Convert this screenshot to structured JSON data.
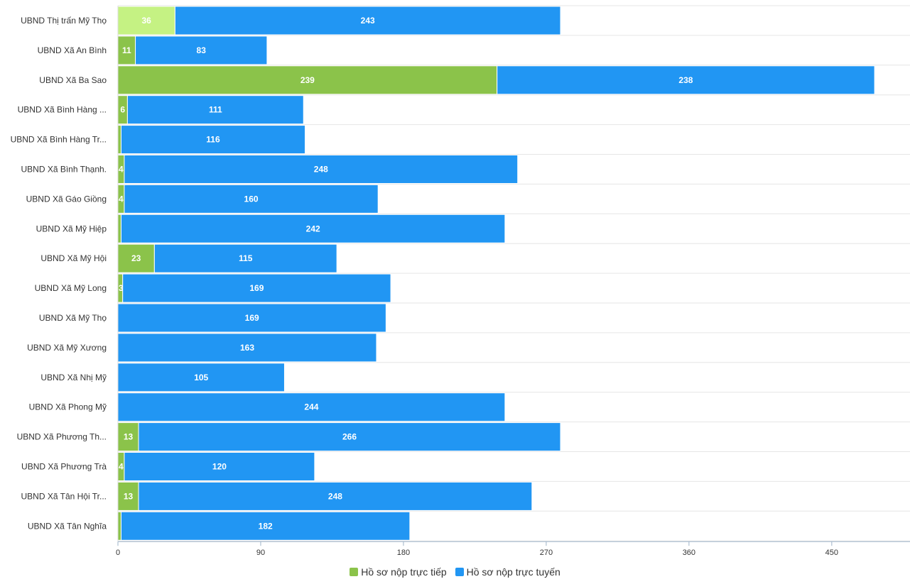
{
  "chart_data": {
    "type": "bar",
    "orientation": "horizontal",
    "stacked": true,
    "categories": [
      "UBND Thị trấn Mỹ Thọ",
      "UBND Xã An Bình",
      "UBND Xã Ba Sao",
      "UBND Xã Bình Hàng ...",
      "UBND Xã Bình Hàng Tr...",
      "UBND Xã Bình Thạnh.",
      "UBND Xã Gáo Giồng",
      "UBND Xã Mỹ Hiệp",
      "UBND Xã Mỹ Hội",
      "UBND Xã Mỹ Long",
      "UBND Xã Mỹ Thọ",
      "UBND Xã Mỹ Xương",
      "UBND Xã Nhị Mỹ",
      "UBND Xã Phong Mỹ",
      "UBND Xã Phương Th...",
      "UBND Xã Phương Trà",
      "UBND Xã Tân Hội Tr...",
      "UBND Xã Tân Nghĩa"
    ],
    "series": [
      {
        "name": "Hồ sơ nộp trực tiếp",
        "color": "#8bc34a",
        "values": [
          36,
          11,
          239,
          6,
          2,
          4,
          4,
          2,
          23,
          3,
          0,
          0,
          0,
          0,
          13,
          4,
          13,
          2
        ],
        "labels": [
          "36",
          "11",
          "239",
          "6",
          "",
          "4",
          "4",
          "",
          "23",
          "3",
          "",
          "",
          "",
          "",
          "13",
          "4",
          "13",
          ""
        ]
      },
      {
        "name": "Hồ sơ nộp trực tuyến",
        "color": "#2196f3",
        "values": [
          243,
          83,
          238,
          111,
          116,
          248,
          160,
          242,
          115,
          169,
          169,
          163,
          105,
          244,
          266,
          120,
          248,
          182
        ],
        "labels": [
          "243",
          "83",
          "238",
          "111",
          "116",
          "248",
          "160",
          "242",
          "115",
          "169",
          "169",
          "163",
          "105",
          "244",
          "266",
          "120",
          "248",
          "182"
        ]
      }
    ],
    "highlight_color": "#c5f283",
    "highlight_index": 0,
    "xaxis": {
      "ticks": [
        "0",
        "90",
        "180",
        "270",
        "360",
        "450"
      ],
      "tick_values": [
        0,
        90,
        180,
        270,
        360,
        450
      ],
      "range": [
        0,
        500
      ]
    },
    "legend": {
      "position": "bottom-center",
      "items": [
        {
          "label": "Hồ sơ nộp trực tiếp",
          "color": "#8bc34a"
        },
        {
          "label": "Hồ sơ nộp trực tuyến",
          "color": "#2196f3"
        }
      ]
    },
    "grid": "horizontal-row-lines"
  }
}
